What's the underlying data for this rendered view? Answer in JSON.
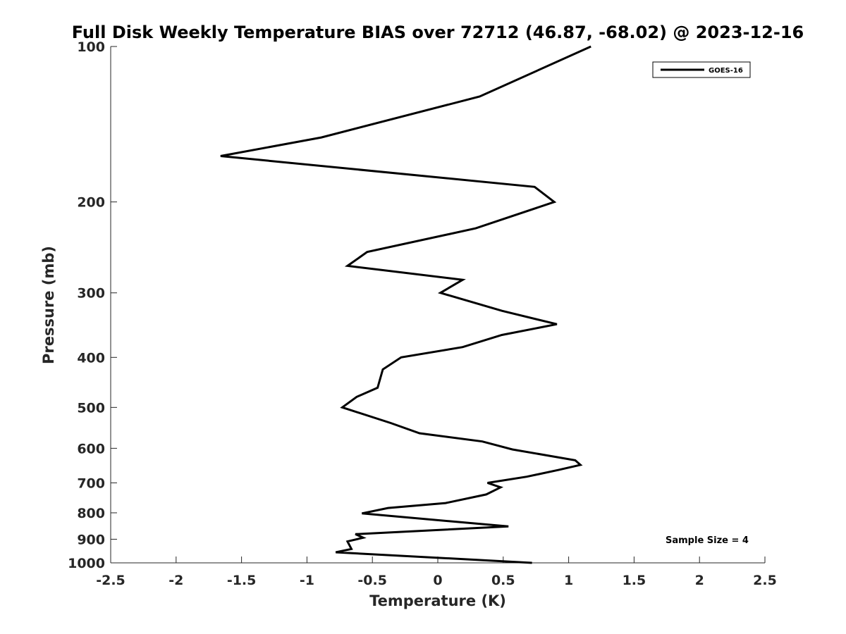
{
  "chart_data": {
    "type": "line",
    "title": "Full Disk Weekly Temperature BIAS over 72712 (46.87, -68.02) @ 2023-12-16",
    "xlabel": "Temperature (K)",
    "ylabel": "Pressure (mb)",
    "xlim": [
      -2.5,
      2.5
    ],
    "ylim": [
      100,
      1000
    ],
    "y_scale": "log",
    "y_reversed": true,
    "x_ticks": [
      -2.5,
      -2,
      -1.5,
      -1,
      -0.5,
      0,
      0.5,
      1,
      1.5,
      2,
      2.5
    ],
    "x_tick_labels": [
      "-2.5",
      "-2",
      "-1.5",
      "-1",
      "-0.5",
      "0",
      "0.5",
      "1",
      "1.5",
      "2",
      "2.5"
    ],
    "y_ticks": [
      100,
      200,
      300,
      400,
      500,
      600,
      700,
      800,
      900,
      1000
    ],
    "y_tick_labels": [
      "100",
      "200",
      "300",
      "400",
      "500",
      "600",
      "700",
      "800",
      "900",
      "1000"
    ],
    "grid": false,
    "legend_position": "top-right",
    "line_color": "#000000",
    "series": [
      {
        "name": "GOES-16",
        "points": [
          {
            "x": 1.17,
            "y": 100
          },
          {
            "x": 0.32,
            "y": 125
          },
          {
            "x": -0.89,
            "y": 150
          },
          {
            "x": -1.66,
            "y": 163
          },
          {
            "x": 0.74,
            "y": 187
          },
          {
            "x": 0.89,
            "y": 200
          },
          {
            "x": 0.29,
            "y": 225
          },
          {
            "x": -0.54,
            "y": 250
          },
          {
            "x": -0.69,
            "y": 266
          },
          {
            "x": 0.19,
            "y": 283
          },
          {
            "x": 0.02,
            "y": 300
          },
          {
            "x": 0.49,
            "y": 325
          },
          {
            "x": 0.91,
            "y": 345
          },
          {
            "x": 0.49,
            "y": 362
          },
          {
            "x": 0.19,
            "y": 382
          },
          {
            "x": -0.28,
            "y": 400
          },
          {
            "x": -0.42,
            "y": 422
          },
          {
            "x": -0.46,
            "y": 458
          },
          {
            "x": -0.62,
            "y": 477
          },
          {
            "x": -0.73,
            "y": 500
          },
          {
            "x": -0.36,
            "y": 536
          },
          {
            "x": -0.14,
            "y": 561
          },
          {
            "x": 0.34,
            "y": 582
          },
          {
            "x": 0.57,
            "y": 603
          },
          {
            "x": 1.05,
            "y": 633
          },
          {
            "x": 1.09,
            "y": 646
          },
          {
            "x": 0.92,
            "y": 661
          },
          {
            "x": 0.68,
            "y": 681
          },
          {
            "x": 0.38,
            "y": 700
          },
          {
            "x": 0.48,
            "y": 714
          },
          {
            "x": 0.37,
            "y": 737
          },
          {
            "x": 0.06,
            "y": 766
          },
          {
            "x": -0.38,
            "y": 783
          },
          {
            "x": -0.58,
            "y": 802
          },
          {
            "x": 0.54,
            "y": 850
          },
          {
            "x": -0.63,
            "y": 880
          },
          {
            "x": -0.57,
            "y": 894
          },
          {
            "x": -0.69,
            "y": 909
          },
          {
            "x": -0.66,
            "y": 940
          },
          {
            "x": -0.78,
            "y": 954
          },
          {
            "x": 0.72,
            "y": 1000
          }
        ]
      }
    ],
    "annotation": "Sample Size = 4"
  }
}
